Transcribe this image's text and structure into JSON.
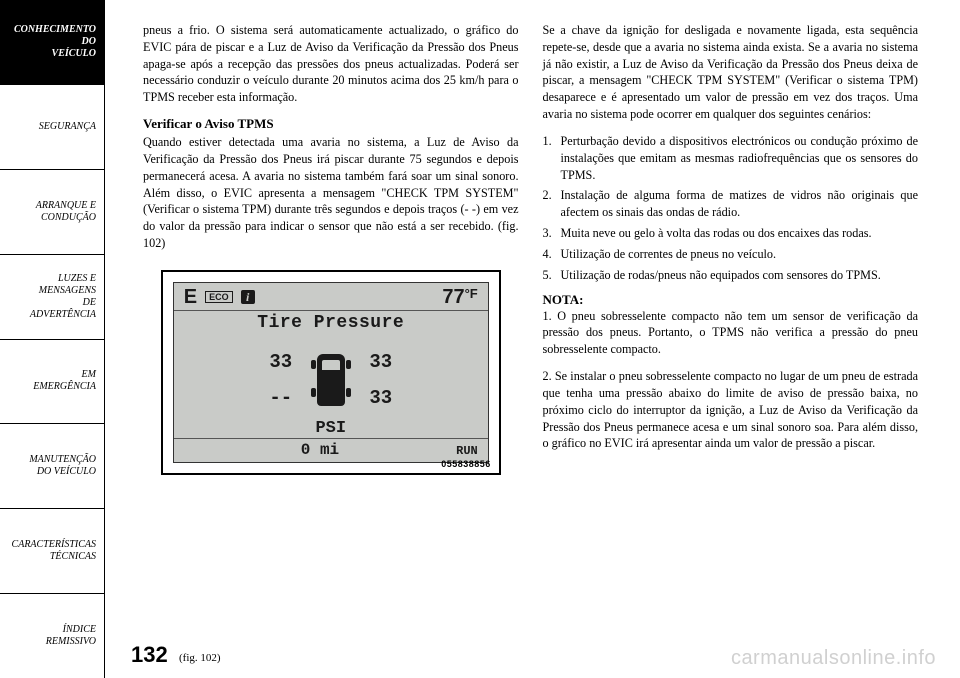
{
  "sidebar": {
    "items": [
      {
        "label": "CONHECIMENTO\nDO\nVEÍCULO",
        "active": true
      },
      {
        "label": "SEGURANÇA",
        "active": false
      },
      {
        "label": "ARRANQUE E\nCONDUÇÃO",
        "active": false
      },
      {
        "label": "LUZES E\nMENSAGENS\nDE\nADVERTÊNCIA",
        "active": false
      },
      {
        "label": "EM\nEMERGÊNCIA",
        "active": false
      },
      {
        "label": "MANUTENÇÃO\nDO VEÍCULO",
        "active": false
      },
      {
        "label": "CARACTERÍSTICAS\nTÉCNICAS",
        "active": false
      },
      {
        "label": "ÍNDICE\nREMISSIVO",
        "active": false
      }
    ]
  },
  "left": {
    "p1": "pneus a frio. O sistema será automaticamente actuali­zado, o gráfico do EVIC pára de piscar e a Luz de Aviso da Verificação da Pressão dos Pneus apaga-se após a recepção das pressões dos pneus actualizadas. Poderá ser necessário conduzir o veículo durante 20 minutos acima dos 25 km/h para o TPMS receber esta informação.",
    "h1": "Verificar o Aviso TPMS",
    "p2": "Quando estiver detectada uma avaria no sistema, a Luz de Aviso da Verificação da Pressão dos Pneus irá piscar durante 75 segundos e depois permanecerá acesa. A avaria no sistema também fará soar um sinal sonoro. Além disso, o EVIC apresenta a mensagem \"CHECK TPM SYSTEM\" (Verificar o sistema TPM) durante três segundos e depois traços (- -) em vez do valor da pressão para indicar o sensor que não está a ser recebido. (fig. 102)"
  },
  "right": {
    "p1": "Se a chave da ignição for desligada e novamente ligada, esta sequência repete-se, desde que a avaria no sistema ainda exista. Se a avaria no sistema já não existir, a Luz de Aviso da Verificação da Pressão dos Pneus deixa de piscar, a mensagem \"CHECK TPM SYSTEM\" (Verificar o sistema TPM) desaparece e é apresentado um valor de pressão em vez dos traços. Uma avaria no sistema pode ocorrer em qualquer dos seguintes cenários:",
    "list": [
      "Perturbação devido a dispositivos electrónicos ou condução próximo de instalações que emitam as mesmas radiofrequências que os sensores do TPMS.",
      "Instalação de alguma forma de matizes de vidros não originais que afectem os sinais das ondas de rádio.",
      "Muita neve ou gelo à volta das rodas ou dos encaixes das rodas.",
      "Utilização de correntes de pneus no veículo.",
      "Utilização de rodas/pneus não equipados com sen­sores do TPMS."
    ],
    "nota": "NOTA:",
    "nota1": "1. O pneu sobresselente compacto não tem um sen­sor de verificação da pressão dos pneus. Portanto, o TPMS não verifica a pressão do pneu sobresselente compacto.",
    "nota2": "2. Se instalar o pneu sobresselente compacto no lugar de um pneu de estrada que tenha uma pressão abaixo do limite de aviso de pressão baixa, no próximo ciclo do interruptor da ignição, a Luz de Aviso da Verificação da Pressão dos Pneus permanece acesa e um sinal sonoro soa. Para além disso, o gráfico no EVIC irá apresentar ainda um valor de pressão a piscar."
  },
  "figure": {
    "compass": "E",
    "eco": "ECO",
    "info": "i",
    "temp_value": "77",
    "temp_unit": "°F",
    "title": "Tire Pressure",
    "fl": "33",
    "fr": "33",
    "rl": "--",
    "rr": "33",
    "unit": "PSI",
    "bottom_dist": "0 mi",
    "bottom_mode": "RUN",
    "code": "055838856"
  },
  "page_number": "132",
  "fig_caption": "(fig. 102)",
  "watermark": "carmanualsonline.info"
}
